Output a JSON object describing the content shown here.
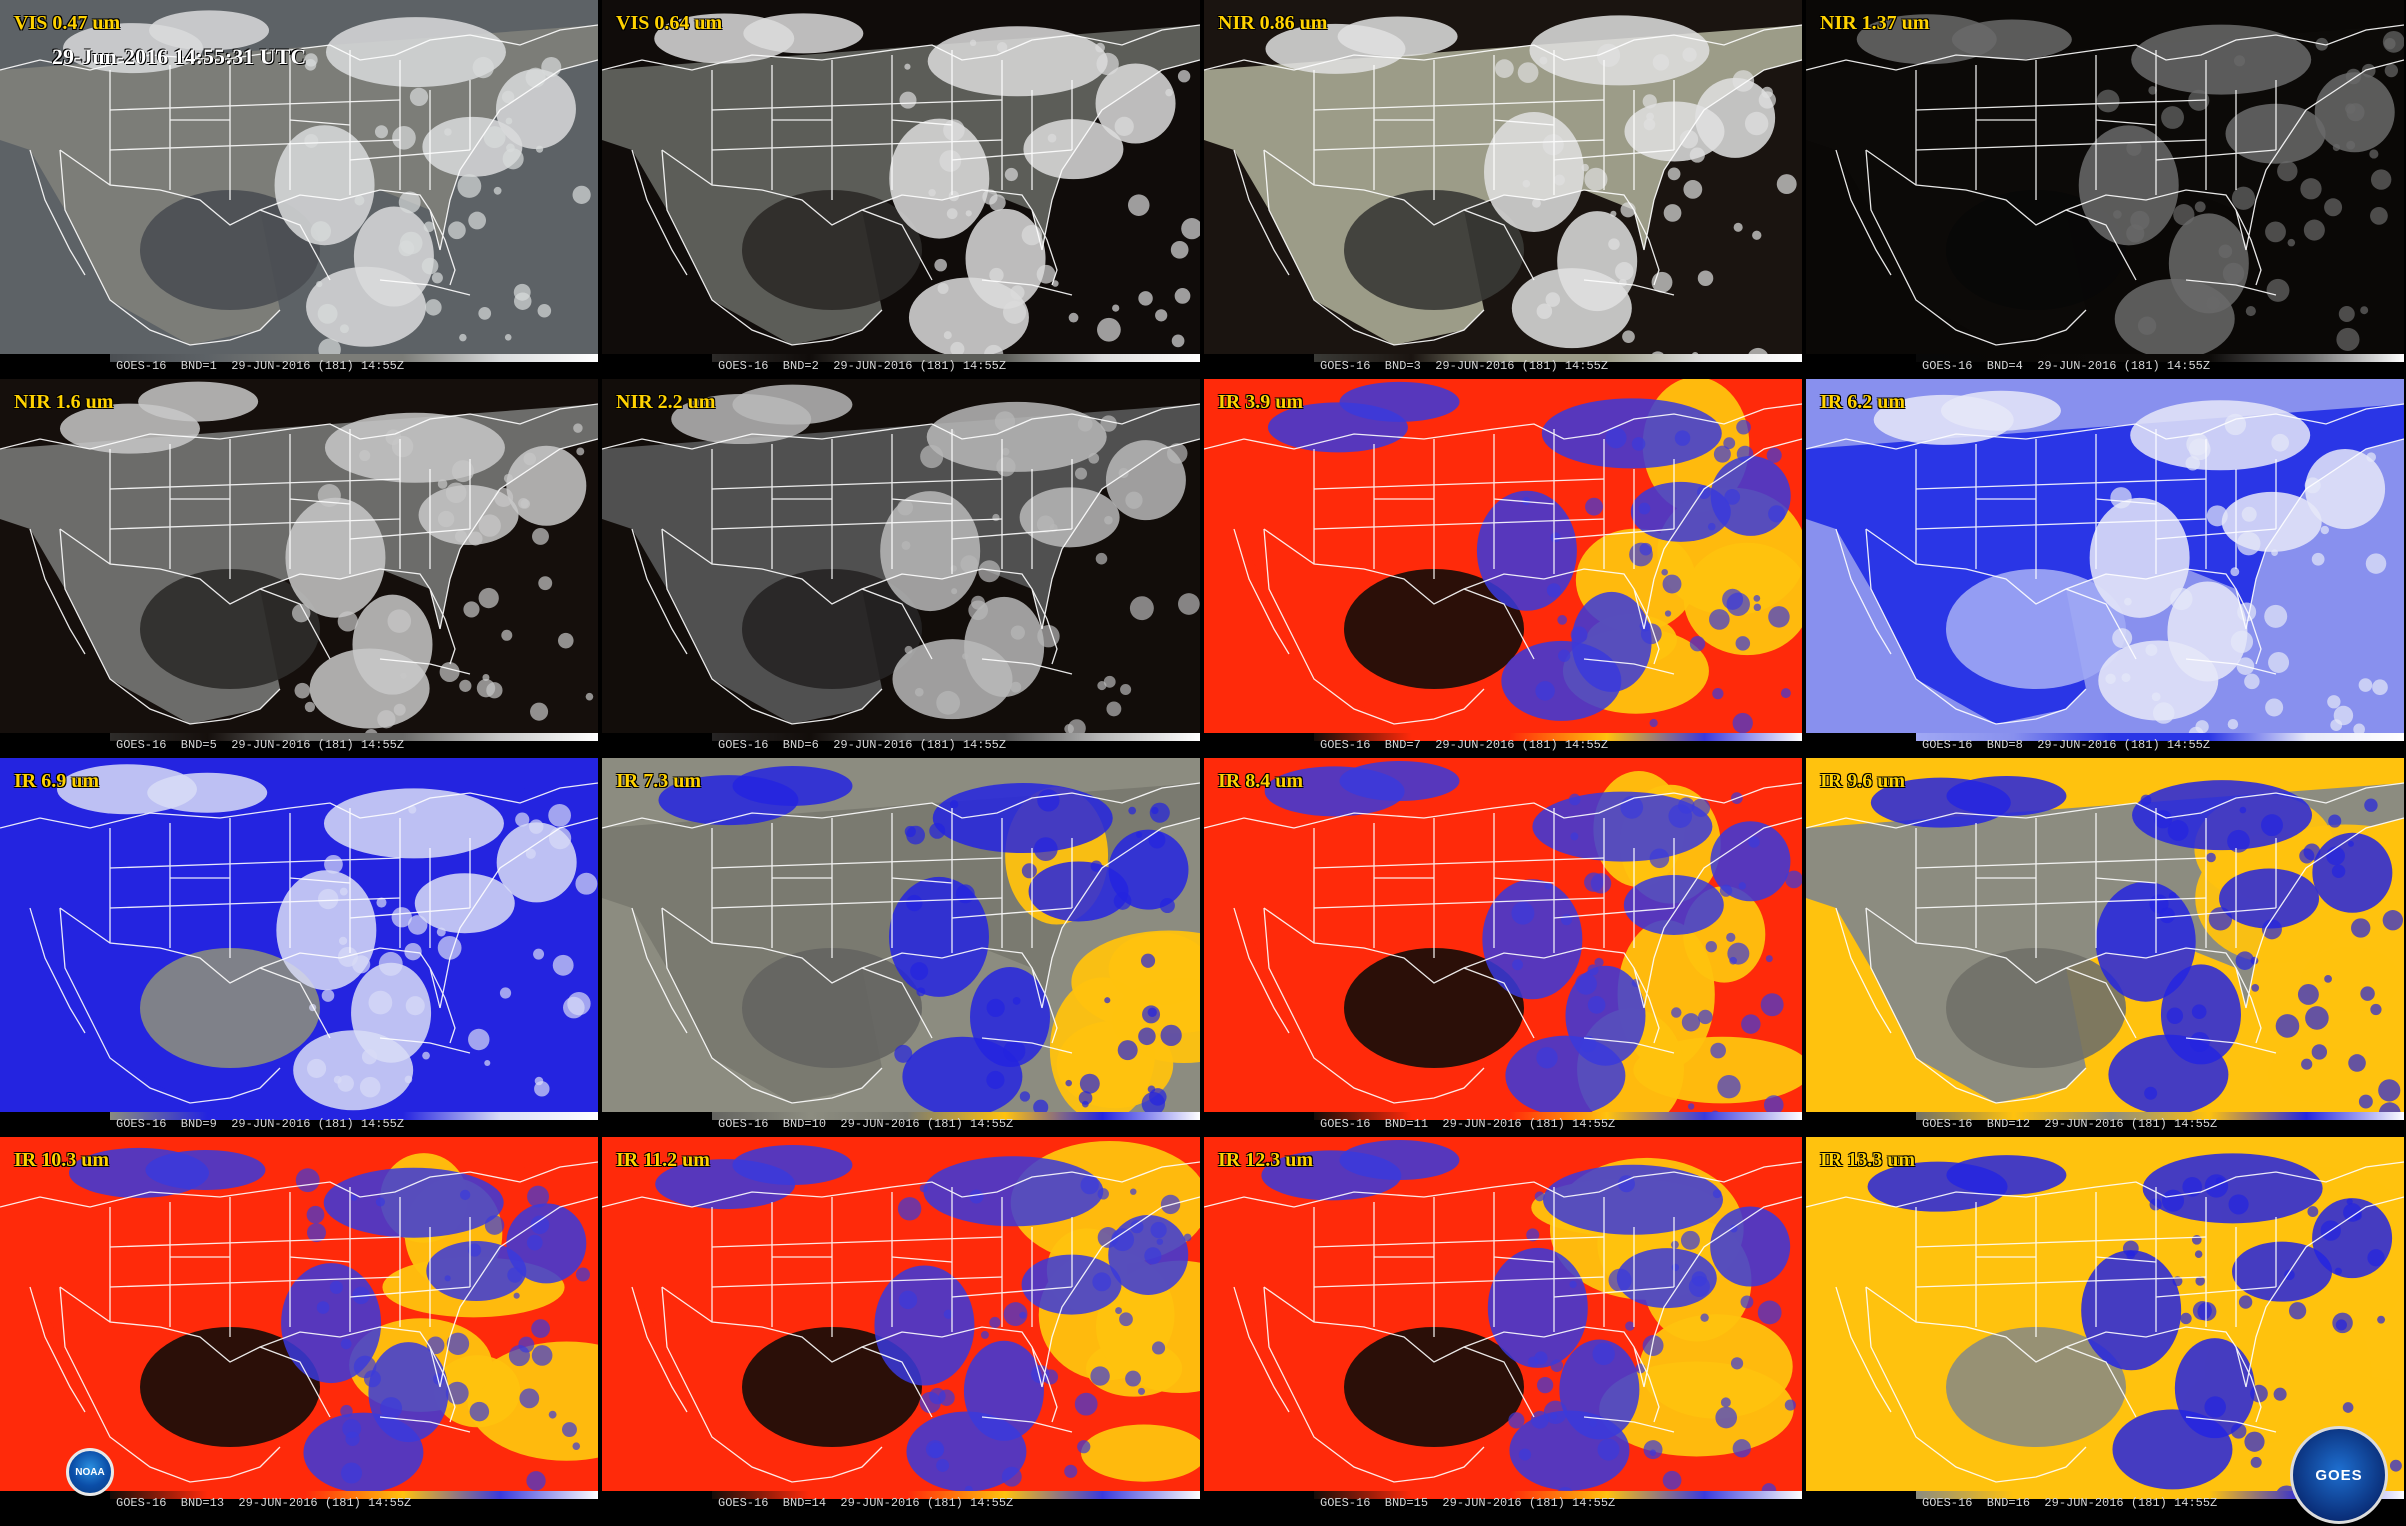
{
  "timestamp": "29-Jun-2016 14:55:31 UTC",
  "panels": [
    {
      "label": "VIS 0.47 um",
      "caption": "GOES-16  BND=1  29-JUN-2016 (181) 14:55Z",
      "palette": "vis"
    },
    {
      "label": "VIS 0.64 um",
      "caption": "GOES-16  BND=2  29-JUN-2016 (181) 14:55Z",
      "palette": "vis2"
    },
    {
      "label": "NIR 0.86 um",
      "caption": "GOES-16  BND=3  29-JUN-2016 (181) 14:55Z",
      "palette": "nir86"
    },
    {
      "label": "NIR 1.37 um",
      "caption": "GOES-16  BND=4  29-JUN-2016 (181) 14:55Z",
      "palette": "nir137"
    },
    {
      "label": "NIR 1.6 um",
      "caption": "GOES-16  BND=5  29-JUN-2016 (181) 14:55Z",
      "palette": "nir16"
    },
    {
      "label": "NIR 2.2 um",
      "caption": "GOES-16  BND=6  29-JUN-2016 (181) 14:55Z",
      "palette": "nir22"
    },
    {
      "label": "IR 3.9 um",
      "caption": "GOES-16  BND=7  29-JUN-2016 (181) 14:55Z",
      "palette": "ir39"
    },
    {
      "label": "IR 6.2 um",
      "caption": "GOES-16  BND=8  29-JUN-2016 (181) 14:55Z",
      "palette": "wv62"
    },
    {
      "label": "IR 6.9 um",
      "caption": "GOES-16  BND=9  29-JUN-2016 (181) 14:55Z",
      "palette": "wv69"
    },
    {
      "label": "IR 7.3 um",
      "caption": "GOES-16  BND=10  29-JUN-2016 (181) 14:55Z",
      "palette": "wv73"
    },
    {
      "label": "IR 8.4 um",
      "caption": "GOES-16  BND=11  29-JUN-2016 (181) 14:55Z",
      "palette": "ir84"
    },
    {
      "label": "IR 9.6 um",
      "caption": "GOES-16  BND=12  29-JUN-2016 (181) 14:55Z",
      "palette": "ir96"
    },
    {
      "label": "IR 10.3 um",
      "caption": "GOES-16  BND=13  29-JUN-2016 (181) 14:55Z",
      "palette": "ir103"
    },
    {
      "label": "IR 11.2 um",
      "caption": "GOES-16  BND=14  29-JUN-2016 (181) 14:55Z",
      "palette": "ir112"
    },
    {
      "label": "IR 12.3 um",
      "caption": "GOES-16  BND=15  29-JUN-2016 (181) 14:55Z",
      "palette": "ir123"
    },
    {
      "label": "IR 13.3 um",
      "caption": "GOES-16  BND=16  29-JUN-2016 (181) 14:55Z",
      "palette": "ir133"
    }
  ],
  "logos": {
    "noaa": "NOAA",
    "goes": "GOES"
  },
  "palettes": {
    "vis": {
      "ocean": "#5d6266",
      "land": "#7c7d78",
      "cloud": "#d9dbdc",
      "dark": "#4a4e52"
    },
    "vis2": {
      "ocean": "#100c0a",
      "land": "#5c5d58",
      "cloud": "#dcdcdc",
      "dark": "#2c2a28"
    },
    "nir86": {
      "ocean": "#1a1410",
      "land": "#9c9c88",
      "cloud": "#e0e0e0",
      "dark": "#3a3a36"
    },
    "nir137": {
      "ocean": "#0a0806",
      "land": "#0c0a08",
      "cloud": "#6a6a6a",
      "dark": "#080808"
    },
    "nir16": {
      "ocean": "#150f0c",
      "land": "#6c6c6a",
      "cloud": "#c8c8c8",
      "dark": "#2e2c2a"
    },
    "nir22": {
      "ocean": "#120d0a",
      "land": "#505050",
      "cloud": "#b8b8b8",
      "dark": "#262424"
    },
    "ir39": {
      "ocean": "#ff2a0a",
      "land": "#ff2a0a",
      "cloud": "#3a3adc",
      "dark": "#140c08",
      "warm": "#ffc20e"
    },
    "wv62": {
      "ocean": "#8890ee",
      "land": "#2a36e6",
      "cloud": "#e6e8f8",
      "dark": "#a0a8f4"
    },
    "wv69": {
      "ocean": "#2424e0",
      "land": "#2424e0",
      "cloud": "#d8dcf6",
      "dark": "#8a8c80"
    },
    "wv73": {
      "ocean": "#8c8c80",
      "land": "#7a7a70",
      "cloud": "#2424e0",
      "dark": "#646460",
      "warm": "#ffc20e"
    },
    "ir84": {
      "ocean": "#ff2a0a",
      "land": "#ff2a0a",
      "cloud": "#3a3adc",
      "dark": "#140c08",
      "warm": "#ffc20e"
    },
    "ir96": {
      "ocean": "#ffc20e",
      "land": "#8c8c80",
      "cloud": "#2424e0",
      "dark": "#707068",
      "warm": "#ffc20e"
    },
    "ir103": {
      "ocean": "#ff2a0a",
      "land": "#ff2a0a",
      "cloud": "#3a3adc",
      "dark": "#140c08",
      "warm": "#ffc20e"
    },
    "ir112": {
      "ocean": "#ff2a0a",
      "land": "#ff2a0a",
      "cloud": "#3a3adc",
      "dark": "#140c08",
      "warm": "#ffc20e"
    },
    "ir123": {
      "ocean": "#ff2a0a",
      "land": "#ff2a0a",
      "cloud": "#3a3adc",
      "dark": "#140c08",
      "warm": "#ffc20e"
    },
    "ir133": {
      "ocean": "#ffc20e",
      "land": "#ffc20e",
      "cloud": "#2424e0",
      "dark": "#8c8c80",
      "warm": "#ffc20e"
    }
  }
}
